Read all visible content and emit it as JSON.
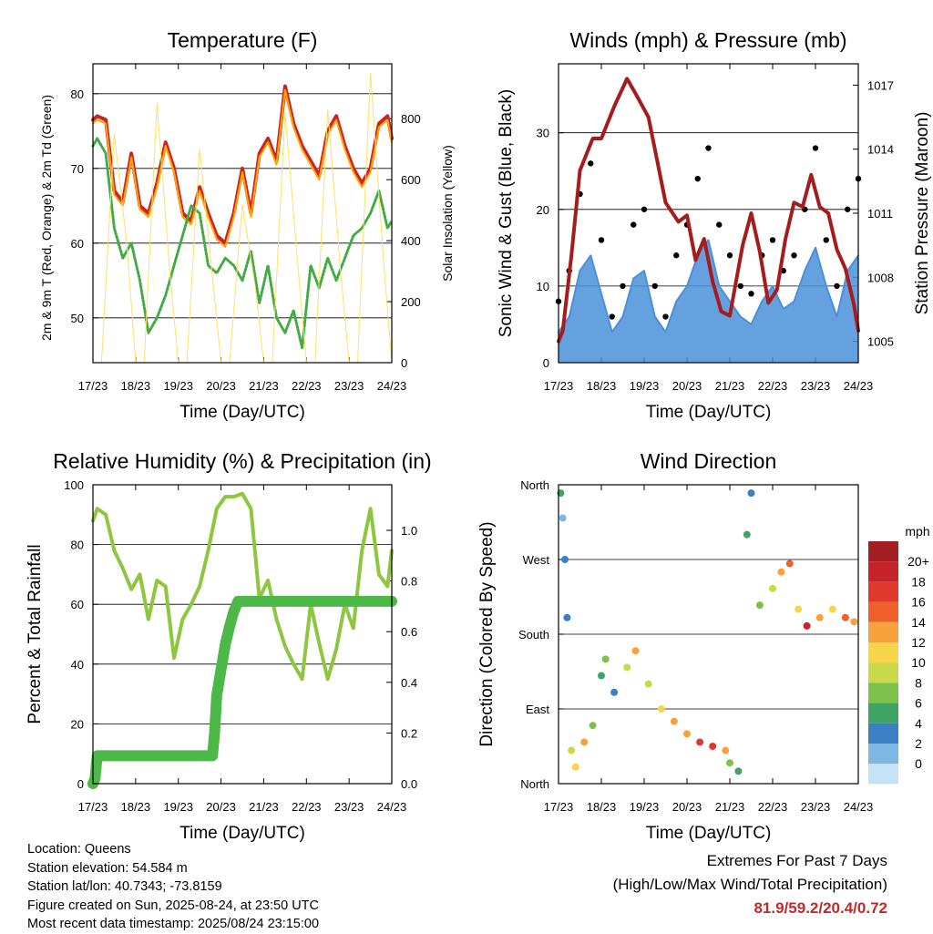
{
  "chart_data": [
    {
      "type": "line",
      "title": "Temperature (F)",
      "xlabel": "Time (Day/UTC)",
      "ylabel": "2m & 9m T (Red, Orange) & 2m Td (Green)",
      "y2label": "Solar Insolation (Yellow)",
      "x_tick_labels": [
        "17/23",
        "18/23",
        "19/23",
        "20/23",
        "21/23",
        "22/23",
        "23/23",
        "24/23"
      ],
      "ylim": [
        44,
        84
      ],
      "y_ticks": [
        50,
        60,
        70,
        80
      ],
      "y2lim": [
        0,
        980
      ],
      "y2_ticks": [
        0,
        200,
        400,
        600,
        800
      ],
      "grid": "horizontal",
      "series": [
        {
          "color": "#cc2222",
          "x": [
            0,
            0.1,
            0.3,
            0.5,
            0.7,
            0.9,
            1.1,
            1.3,
            1.5,
            1.7,
            1.9,
            2.1,
            2.3,
            2.5,
            2.7,
            2.9,
            3.1,
            3.3,
            3.5,
            3.7,
            3.9,
            4.1,
            4.3,
            4.5,
            4.7,
            4.9,
            5.1,
            5.3,
            5.5,
            5.7,
            5.9,
            6.1,
            6.3,
            6.5,
            6.7,
            6.9,
            7.0
          ],
          "values": [
            76.5,
            77,
            76.5,
            67,
            65.5,
            72,
            65,
            64,
            68,
            73.5,
            70,
            64,
            63,
            67.5,
            64,
            61,
            60,
            64,
            70,
            64,
            72,
            74,
            71,
            81,
            76,
            73,
            71,
            69,
            75,
            77,
            73,
            70,
            68,
            70,
            76,
            77,
            74
          ]
        },
        {
          "color": "#ffa500",
          "x": [
            0,
            0.1,
            0.3,
            0.5,
            0.7,
            0.9,
            1.1,
            1.3,
            1.5,
            1.7,
            1.9,
            2.1,
            2.3,
            2.5,
            2.7,
            2.9,
            3.1,
            3.3,
            3.5,
            3.7,
            3.9,
            4.1,
            4.3,
            4.5,
            4.7,
            4.9,
            5.1,
            5.3,
            5.5,
            5.7,
            5.9,
            6.1,
            6.3,
            6.5,
            6.7,
            6.9,
            7.0
          ],
          "values": [
            76,
            76.5,
            76,
            66.5,
            65,
            71.5,
            64.5,
            63.5,
            67.5,
            73,
            69.5,
            63.5,
            62.5,
            67,
            63.5,
            60.5,
            59.5,
            63.5,
            69.5,
            63.5,
            71.5,
            73.5,
            70.5,
            80.5,
            75.5,
            72.5,
            70.5,
            68.5,
            74.5,
            76.5,
            72.5,
            69.5,
            67.5,
            69.5,
            75.5,
            76.5,
            73.5
          ]
        },
        {
          "color": "#44aa44",
          "x": [
            0,
            0.1,
            0.3,
            0.5,
            0.7,
            0.9,
            1.1,
            1.3,
            1.5,
            1.7,
            1.9,
            2.1,
            2.3,
            2.5,
            2.7,
            2.9,
            3.1,
            3.3,
            3.5,
            3.7,
            3.9,
            4.1,
            4.3,
            4.5,
            4.7,
            4.9,
            5.1,
            5.3,
            5.5,
            5.7,
            5.9,
            6.1,
            6.3,
            6.5,
            6.7,
            6.9,
            7.0
          ],
          "values": [
            73,
            74,
            72,
            62,
            58,
            60,
            55,
            48,
            50,
            53,
            57,
            61,
            65,
            64,
            57,
            56,
            58,
            57,
            55,
            59,
            52,
            57,
            50,
            48,
            51,
            46,
            57,
            54,
            58,
            55,
            58,
            61,
            62,
            64,
            67,
            62,
            63
          ]
        },
        {
          "color": "#ffe066",
          "x": [
            0.2,
            0.5,
            0.8,
            1.0,
            1.2,
            1.5,
            1.8,
            2.0,
            2.2,
            2.5,
            2.8,
            3.0,
            3.2,
            3.5,
            3.8,
            4.0,
            4.2,
            4.5,
            4.8,
            5.0,
            5.2,
            5.5,
            5.8,
            6.0,
            6.2,
            6.5,
            6.8,
            7.0
          ],
          "values": [
            0,
            750,
            380,
            0,
            0,
            850,
            300,
            0,
            0,
            700,
            280,
            0,
            0,
            520,
            250,
            0,
            0,
            820,
            320,
            0,
            0,
            830,
            300,
            0,
            0,
            950,
            350,
            0
          ],
          "axis": "right"
        }
      ]
    },
    {
      "type": "scatter",
      "title": "Winds (mph) & Pressure (mb)",
      "xlabel": "Time (Day/UTC)",
      "ylabel": "Sonic Wind & Gust (Blue, Black)",
      "y2label": "Station Pressure (Maroon)",
      "x_tick_labels": [
        "17/23",
        "18/23",
        "19/23",
        "20/23",
        "21/23",
        "22/23",
        "23/23",
        "24/23"
      ],
      "ylim": [
        0,
        39
      ],
      "y_ticks": [
        0,
        10,
        20,
        30
      ],
      "y2lim": [
        1004,
        1018
      ],
      "y2_ticks": [
        1005,
        1008,
        1011,
        1014,
        1017
      ],
      "grid": "horizontal",
      "series": [
        {
          "color": "#4a90d9",
          "x": [
            0,
            0.25,
            0.5,
            0.75,
            1.0,
            1.25,
            1.5,
            1.75,
            2.0,
            2.25,
            2.5,
            2.75,
            3.0,
            3.25,
            3.5,
            3.75,
            4.0,
            4.25,
            4.5,
            4.75,
            5.0,
            5.25,
            5.5,
            5.75,
            6.0,
            6.25,
            6.5,
            6.75,
            7.0
          ],
          "values": [
            4,
            6,
            12,
            14,
            9,
            4,
            6,
            11,
            12,
            6,
            4,
            8,
            10,
            14,
            16,
            10,
            8,
            6,
            5,
            8,
            10,
            7,
            8,
            12,
            15,
            10,
            6,
            12,
            14
          ]
        },
        {
          "color": "#000000",
          "x": [
            0,
            0.25,
            0.5,
            0.75,
            1.0,
            1.25,
            1.5,
            1.75,
            2.0,
            2.25,
            2.5,
            2.75,
            3.0,
            3.25,
            3.5,
            3.75,
            4.0,
            4.25,
            4.5,
            4.75,
            5.0,
            5.25,
            5.5,
            5.75,
            6.0,
            6.25,
            6.5,
            6.75,
            7.0
          ],
          "values": [
            8,
            12,
            22,
            26,
            16,
            6,
            10,
            18,
            20,
            10,
            6,
            14,
            18,
            24,
            28,
            18,
            14,
            10,
            9,
            14,
            16,
            12,
            14,
            20,
            28,
            16,
            10,
            20,
            24
          ]
        },
        {
          "color": "#a61c1c",
          "x": [
            0,
            0.1,
            0.3,
            0.5,
            0.8,
            1.0,
            1.3,
            1.6,
            1.8,
            2.1,
            2.3,
            2.5,
            2.8,
            3.0,
            3.2,
            3.4,
            3.6,
            3.8,
            4.0,
            4.3,
            4.5,
            4.7,
            4.9,
            5.1,
            5.3,
            5.5,
            5.7,
            5.9,
            6.1,
            6.3,
            6.5,
            6.7,
            6.9,
            7.0
          ],
          "values": [
            1005,
            1005.5,
            1009,
            1013,
            1014.5,
            1014.5,
            1016,
            1017.3,
            1016.6,
            1015.5,
            1013.5,
            1011.5,
            1010.6,
            1010.9,
            1008.8,
            1009.8,
            1007.8,
            1006.4,
            1006.2,
            1009.5,
            1011,
            1009.2,
            1006.8,
            1007.4,
            1009.8,
            1011.5,
            1011.3,
            1012.8,
            1011.3,
            1011,
            1009.3,
            1008.4,
            1006.7,
            1005.5
          ],
          "axis": "right"
        }
      ]
    },
    {
      "type": "line",
      "title": "Relative Humidity (%) & Precipitation (in)",
      "xlabel": "Time (Day/UTC)",
      "ylabel": "Percent & Total Rainfall",
      "x_tick_labels": [
        "17/23",
        "18/23",
        "19/23",
        "20/23",
        "21/23",
        "22/23",
        "23/23",
        "24/23"
      ],
      "ylim": [
        0,
        100
      ],
      "y_ticks": [
        0,
        20,
        40,
        60,
        80,
        100
      ],
      "y2lim": [
        0,
        1.18
      ],
      "y2_ticks": [
        0.0,
        0.2,
        0.4,
        0.6,
        0.8,
        1.0
      ],
      "grid": "horizontal",
      "series": [
        {
          "color": "#8dc63f",
          "x": [
            0,
            0.1,
            0.3,
            0.5,
            0.7,
            0.9,
            1.1,
            1.3,
            1.5,
            1.7,
            1.9,
            2.1,
            2.3,
            2.5,
            2.7,
            2.9,
            3.1,
            3.3,
            3.5,
            3.7,
            3.9,
            4.1,
            4.3,
            4.5,
            4.7,
            4.9,
            5.1,
            5.3,
            5.5,
            5.7,
            5.9,
            6.1,
            6.3,
            6.5,
            6.7,
            6.9,
            7.0
          ],
          "values": [
            88,
            92,
            90,
            78,
            72,
            65,
            70,
            55,
            68,
            66,
            42,
            55,
            60,
            66,
            78,
            92,
            96,
            96,
            97,
            92,
            62,
            68,
            55,
            46,
            40,
            35,
            60,
            47,
            35,
            45,
            60,
            52,
            78,
            92,
            70,
            66,
            78
          ]
        },
        {
          "color": "#4cb848",
          "x": [
            0,
            0.05,
            0.1,
            0.5,
            1.0,
            1.5,
            2.0,
            2.5,
            2.8,
            2.85,
            2.9,
            3.0,
            3.1,
            3.2,
            3.3,
            3.4,
            3.5,
            3.7,
            4.0,
            5.0,
            6.0,
            7.0
          ],
          "values": [
            0,
            0.02,
            0.11,
            0.11,
            0.11,
            0.11,
            0.11,
            0.11,
            0.11,
            0.2,
            0.35,
            0.45,
            0.55,
            0.62,
            0.68,
            0.72,
            0.72,
            0.72,
            0.72,
            0.72,
            0.72,
            0.72
          ],
          "axis": "right"
        }
      ]
    },
    {
      "type": "scatter",
      "title": "Wind Direction",
      "xlabel": "Time (Day/UTC)",
      "ylabel": "Direction (Colored By Speed)",
      "x_tick_labels": [
        "17/23",
        "18/23",
        "19/23",
        "20/23",
        "21/23",
        "22/23",
        "23/23",
        "24/23"
      ],
      "y_tick_labels": [
        "North",
        "East",
        "South",
        "West",
        "North"
      ],
      "legend": {
        "title": "mph",
        "labels": [
          "20+",
          "18",
          "16",
          "14",
          "12",
          "10",
          "8",
          "6",
          "4",
          "2",
          "0"
        ],
        "colors": [
          "#a51e22",
          "#c7242a",
          "#e03a2f",
          "#f0612a",
          "#f7a23c",
          "#f7d54a",
          "#c9d949",
          "#7bc14b",
          "#41a363",
          "#3a80c3",
          "#7eb7e4",
          "#c4e3f7"
        ]
      },
      "points": [
        {
          "x": 0.05,
          "dir": 350,
          "spd": 6
        },
        {
          "x": 0.1,
          "dir": 320,
          "spd": 2
        },
        {
          "x": 0.15,
          "dir": 270,
          "spd": 3
        },
        {
          "x": 0.2,
          "dir": 200,
          "spd": 4
        },
        {
          "x": 0.3,
          "dir": 40,
          "spd": 10
        },
        {
          "x": 0.4,
          "dir": 20,
          "spd": 12
        },
        {
          "x": 0.6,
          "dir": 50,
          "spd": 14
        },
        {
          "x": 0.8,
          "dir": 70,
          "spd": 8
        },
        {
          "x": 1.0,
          "dir": 130,
          "spd": 6
        },
        {
          "x": 1.1,
          "dir": 150,
          "spd": 8
        },
        {
          "x": 1.3,
          "dir": 110,
          "spd": 4
        },
        {
          "x": 1.6,
          "dir": 140,
          "spd": 10
        },
        {
          "x": 1.8,
          "dir": 160,
          "spd": 14
        },
        {
          "x": 2.1,
          "dir": 120,
          "spd": 10
        },
        {
          "x": 2.4,
          "dir": 90,
          "spd": 12
        },
        {
          "x": 2.7,
          "dir": 75,
          "spd": 13
        },
        {
          "x": 3.0,
          "dir": 60,
          "spd": 14
        },
        {
          "x": 3.3,
          "dir": 50,
          "spd": 17
        },
        {
          "x": 3.6,
          "dir": 45,
          "spd": 18
        },
        {
          "x": 3.9,
          "dir": 40,
          "spd": 14
        },
        {
          "x": 4.0,
          "dir": 25,
          "spd": 8
        },
        {
          "x": 4.2,
          "dir": 15,
          "spd": 6
        },
        {
          "x": 4.4,
          "dir": 300,
          "spd": 6
        },
        {
          "x": 4.5,
          "dir": 350,
          "spd": 4
        },
        {
          "x": 4.7,
          "dir": 215,
          "spd": 8
        },
        {
          "x": 5.0,
          "dir": 235,
          "spd": 10
        },
        {
          "x": 5.2,
          "dir": 255,
          "spd": 13
        },
        {
          "x": 5.4,
          "dir": 265,
          "spd": 15
        },
        {
          "x": 5.6,
          "dir": 210,
          "spd": 12
        },
        {
          "x": 5.8,
          "dir": 190,
          "spd": 20
        },
        {
          "x": 6.1,
          "dir": 200,
          "spd": 14
        },
        {
          "x": 6.4,
          "dir": 210,
          "spd": 12
        },
        {
          "x": 6.7,
          "dir": 200,
          "spd": 16
        },
        {
          "x": 6.9,
          "dir": 195,
          "spd": 14
        }
      ]
    }
  ],
  "info": {
    "location": "Location: Queens",
    "elevation": "Station elevation: 54.584 m",
    "latlon": "Station lat/lon: 40.7343; -73.8159",
    "created": "Figure created on Sun, 2025-08-24, at 23:50 UTC",
    "recent": "Most recent data timestamp: 2025/08/24 23:15:00"
  },
  "extremes": {
    "title": "Extremes For Past 7 Days",
    "subtitle": "(High/Low/Max Wind/Total Precipitation)",
    "values": "81.9/59.2/20.4/0.72"
  }
}
